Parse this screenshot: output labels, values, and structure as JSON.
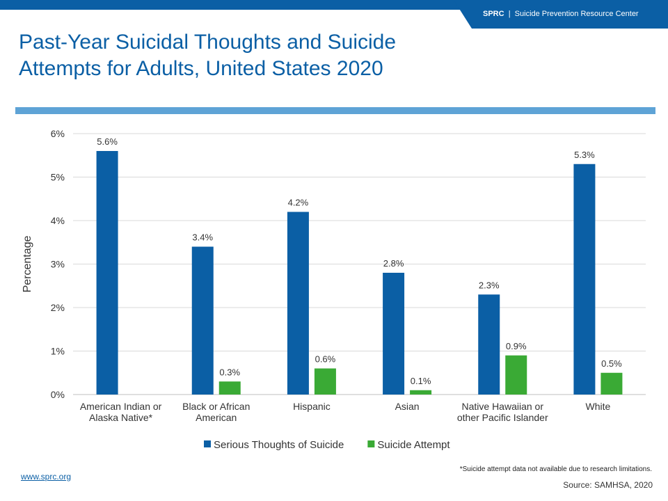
{
  "header": {
    "brand_strong": "SPRC",
    "brand_separator": "|",
    "brand_name": "Suicide Prevention Resource Center"
  },
  "title_lines": [
    "Past-Year Suicidal Thoughts and Suicide",
    "Attempts for Adults, United States 2020"
  ],
  "chart_data": {
    "type": "bar",
    "title": "Past-Year Suicidal Thoughts and Suicide Attempts for Adults, United States 2020",
    "ylabel": "Percentage",
    "xlabel": "",
    "ylim": [
      0,
      6
    ],
    "y_ticks": [
      "0%",
      "1%",
      "2%",
      "3%",
      "4%",
      "5%",
      "6%"
    ],
    "grid": true,
    "legend_position": "bottom",
    "categories": [
      [
        "American Indian or",
        "Alaska Native*"
      ],
      [
        "Black or African",
        "American"
      ],
      [
        "Hispanic"
      ],
      [
        "Asian"
      ],
      [
        "Native Hawaiian or",
        "other Pacific Islander"
      ],
      [
        "White"
      ]
    ],
    "series": [
      {
        "name": "Serious Thoughts of Suicide",
        "color": "#0b5fa5",
        "values": [
          5.6,
          3.4,
          4.2,
          2.8,
          2.3,
          5.3
        ],
        "labels": [
          "5.6%",
          "3.4%",
          "4.2%",
          "2.8%",
          "2.3%",
          "5.3%"
        ]
      },
      {
        "name": "Suicide Attempt",
        "color": "#3aaa35",
        "values": [
          null,
          0.3,
          0.6,
          0.1,
          0.9,
          0.5
        ],
        "labels": [
          "",
          "0.3%",
          "0.6%",
          "0.1%",
          "0.9%",
          "0.5%"
        ]
      }
    ]
  },
  "footnote": "*Suicide attempt data not available due to research limitations.",
  "source": "Source: SAMHSA, 2020",
  "website": "www.sprc.org"
}
